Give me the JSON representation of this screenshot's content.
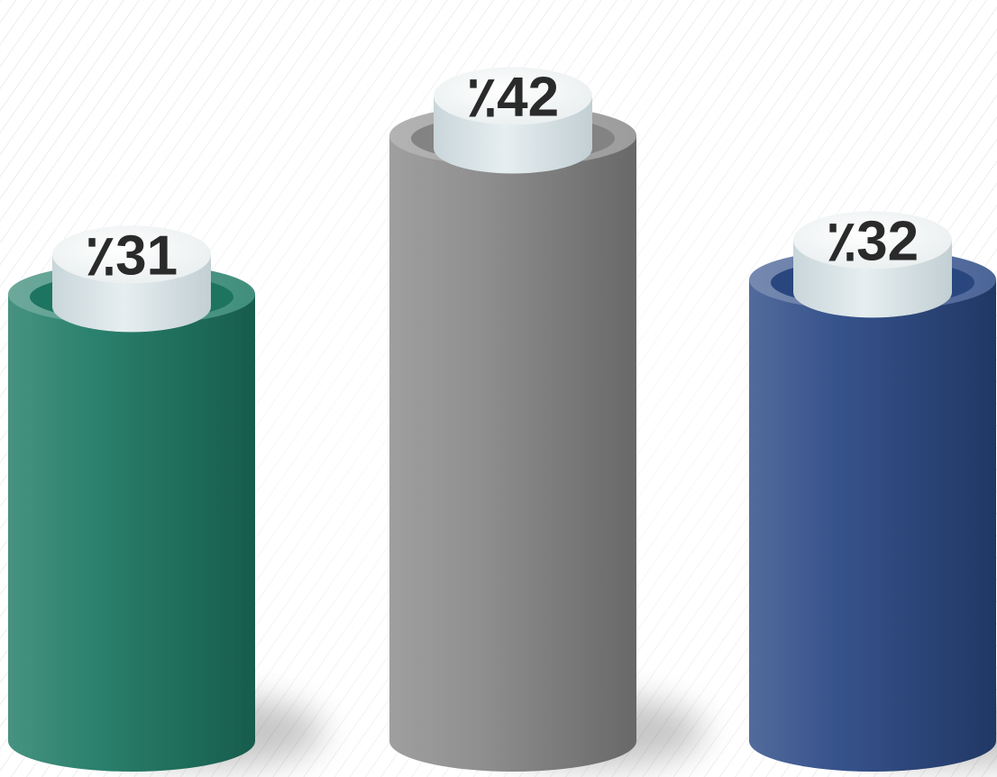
{
  "chart_data": {
    "type": "bar",
    "style": "3d-cylinder",
    "categories": [
      "",
      "",
      ""
    ],
    "values": [
      31,
      42,
      32
    ],
    "labels": [
      "٪31",
      "٪42",
      "٪32"
    ],
    "colors": [
      "#1f7a65",
      "#8a8a8a",
      "#2c4a86"
    ],
    "grid": false,
    "legend": "none",
    "title": "",
    "xlabel": "",
    "ylabel": ""
  }
}
